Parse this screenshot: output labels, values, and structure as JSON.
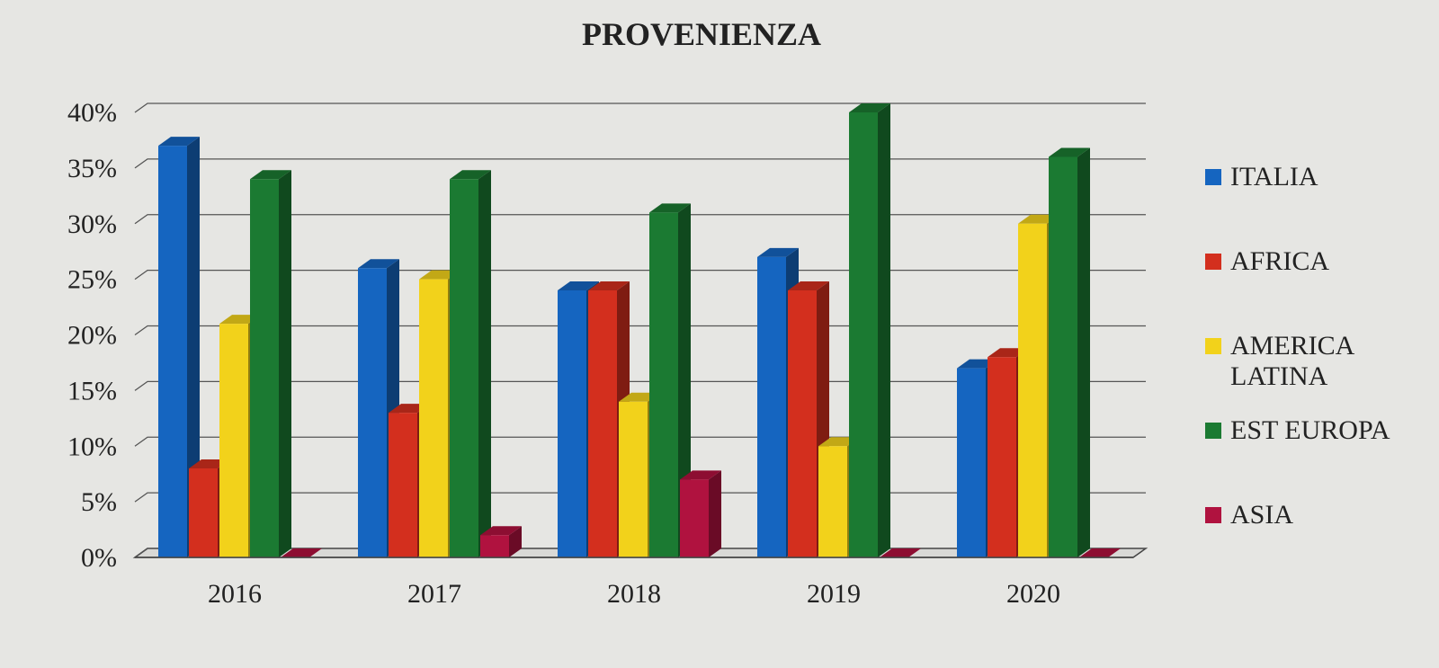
{
  "chart_data": {
    "type": "bar3d",
    "title": "PROVENIENZA",
    "categories": [
      "2016",
      "2017",
      "2018",
      "2019",
      "2020"
    ],
    "series": [
      {
        "name": "ITALIA",
        "color": "#1565c0",
        "values": [
          37,
          26,
          24,
          27,
          17
        ]
      },
      {
        "name": "AFRICA",
        "color": "#d32f1e",
        "values": [
          8,
          13,
          24,
          24,
          18
        ]
      },
      {
        "name": "AMERICA LATINA",
        "color": "#f2d21b",
        "values": [
          21,
          25,
          14,
          10,
          30
        ]
      },
      {
        "name": "EST EUROPA",
        "color": "#1b7a32",
        "values": [
          34,
          34,
          31,
          40,
          36
        ]
      },
      {
        "name": "ASIA",
        "color": "#b0123f",
        "values": [
          0,
          2,
          7,
          0,
          0
        ]
      }
    ],
    "ylim": [
      0,
      40
    ],
    "yticks": [
      {
        "value": 0,
        "label": "0%"
      },
      {
        "value": 5,
        "label": "5%"
      },
      {
        "value": 10,
        "label": "10%"
      },
      {
        "value": 15,
        "label": "15%"
      },
      {
        "value": 20,
        "label": "20%"
      },
      {
        "value": 25,
        "label": "25%"
      },
      {
        "value": 30,
        "label": "30%"
      },
      {
        "value": 35,
        "label": "35%"
      },
      {
        "value": 40,
        "label": "40%"
      }
    ],
    "grid": true,
    "legend": "right"
  }
}
